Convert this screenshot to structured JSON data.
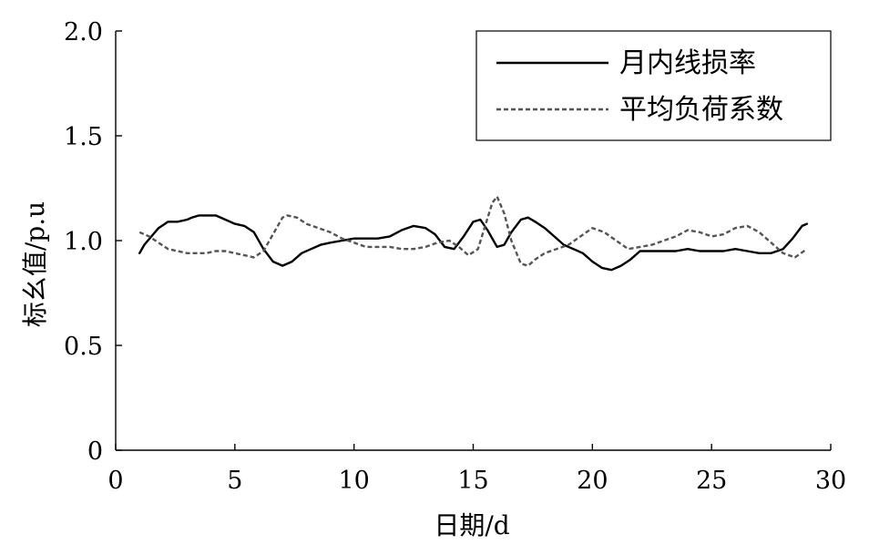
{
  "chart_data": {
    "type": "line",
    "xlabel": "日期/d",
    "ylabel": "标幺值/p.u",
    "xlim": [
      0,
      30
    ],
    "ylim": [
      0,
      2.0
    ],
    "xticks": [
      0,
      5,
      10,
      15,
      20,
      25,
      30
    ],
    "xtick_labels": [
      "0",
      "5",
      "10",
      "15",
      "20",
      "25",
      "30"
    ],
    "yticks": [
      0,
      0.5,
      1.0,
      1.5,
      2.0
    ],
    "ytick_labels": [
      "0",
      "0.5",
      "1.0",
      "1.5",
      "2.0"
    ],
    "grid": false,
    "legend_position": "top-right",
    "series": [
      {
        "name": "月内线损率",
        "style": "solid",
        "color": "#000000",
        "x": [
          1,
          1.2,
          1.5,
          1.8,
          2.2,
          2.6,
          3.0,
          3.2,
          3.5,
          3.8,
          4.2,
          4.6,
          5.0,
          5.4,
          5.8,
          6.2,
          6.6,
          7.0,
          7.4,
          7.8,
          8.2,
          8.6,
          9.0,
          9.5,
          10.0,
          10.5,
          11.0,
          11.5,
          12.0,
          12.5,
          13.0,
          13.4,
          13.8,
          14.2,
          14.6,
          15.0,
          15.3,
          15.6,
          16.0,
          16.3,
          16.6,
          17.0,
          17.3,
          17.6,
          18.0,
          18.4,
          18.8,
          19.2,
          19.6,
          20.0,
          20.4,
          20.8,
          21.2,
          21.6,
          22.0,
          22.5,
          23.0,
          23.5,
          24.0,
          24.5,
          25.0,
          25.5,
          26.0,
          26.5,
          27.0,
          27.5,
          28.0,
          28.4,
          28.8,
          29.0
        ],
        "values": [
          0.94,
          0.98,
          1.02,
          1.06,
          1.09,
          1.09,
          1.1,
          1.11,
          1.12,
          1.12,
          1.12,
          1.1,
          1.08,
          1.07,
          1.04,
          0.96,
          0.9,
          0.88,
          0.9,
          0.94,
          0.96,
          0.98,
          0.99,
          1.0,
          1.01,
          1.01,
          1.01,
          1.02,
          1.05,
          1.07,
          1.06,
          1.03,
          0.97,
          0.96,
          1.02,
          1.09,
          1.1,
          1.05,
          0.97,
          0.98,
          1.04,
          1.1,
          1.11,
          1.09,
          1.06,
          1.02,
          0.98,
          0.96,
          0.94,
          0.9,
          0.87,
          0.86,
          0.88,
          0.91,
          0.95,
          0.95,
          0.95,
          0.95,
          0.96,
          0.95,
          0.95,
          0.95,
          0.96,
          0.95,
          0.94,
          0.94,
          0.96,
          1.01,
          1.07,
          1.08
        ]
      },
      {
        "name": "平均负荷系数",
        "style": "dashed",
        "color": "#555555",
        "x": [
          1,
          1.4,
          1.8,
          2.2,
          2.6,
          3.0,
          3.4,
          3.8,
          4.2,
          4.6,
          5.0,
          5.4,
          5.8,
          6.2,
          6.6,
          7.0,
          7.2,
          7.6,
          8.0,
          8.5,
          9.0,
          9.5,
          10.0,
          10.5,
          11.0,
          11.5,
          12.0,
          12.5,
          13.0,
          13.5,
          14.0,
          14.4,
          14.8,
          15.2,
          15.5,
          15.8,
          16.0,
          16.3,
          16.6,
          17.0,
          17.3,
          17.6,
          18.0,
          18.5,
          19.0,
          19.5,
          20.0,
          20.5,
          21.0,
          21.5,
          22.0,
          22.5,
          23.0,
          23.5,
          24.0,
          24.5,
          25.0,
          25.5,
          26.0,
          26.5,
          27.0,
          27.5,
          28.0,
          28.5,
          29.0
        ],
        "values": [
          1.04,
          1.02,
          0.99,
          0.96,
          0.95,
          0.94,
          0.94,
          0.94,
          0.95,
          0.95,
          0.94,
          0.93,
          0.92,
          0.95,
          1.03,
          1.11,
          1.12,
          1.11,
          1.08,
          1.06,
          1.04,
          1.01,
          0.99,
          0.97,
          0.97,
          0.97,
          0.96,
          0.96,
          0.97,
          0.99,
          1.0,
          0.97,
          0.93,
          0.96,
          1.07,
          1.18,
          1.21,
          1.13,
          1.0,
          0.89,
          0.88,
          0.91,
          0.94,
          0.96,
          0.98,
          1.02,
          1.06,
          1.04,
          1.0,
          0.96,
          0.97,
          0.98,
          1.0,
          1.02,
          1.05,
          1.04,
          1.02,
          1.03,
          1.06,
          1.07,
          1.04,
          0.99,
          0.94,
          0.92,
          0.96
        ]
      }
    ]
  }
}
